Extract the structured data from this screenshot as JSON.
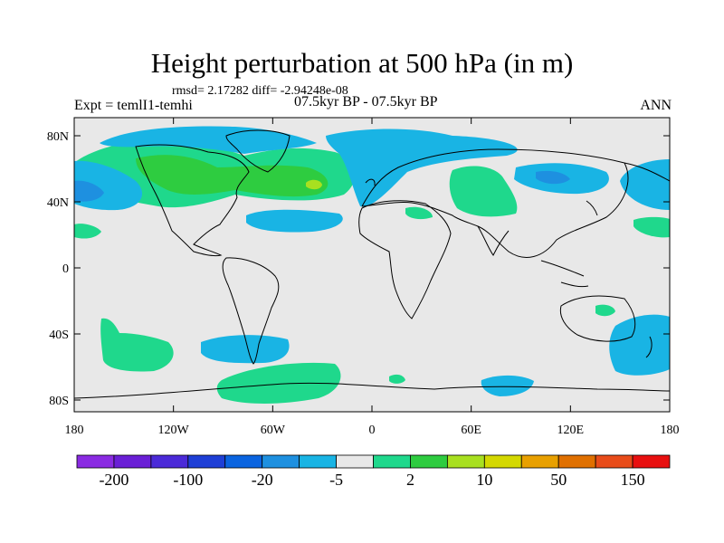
{
  "header": {
    "title": "Height perturbation at 500 hPa (in m)",
    "stats": "rmsd= 2.17282 diff= -2.94248e-08",
    "left_label": "Expt = temlI1-temhi",
    "center_label": "07.5kyr BP - 07.5kyr BP",
    "right_label": "ANN"
  },
  "map": {
    "x_ticks": [
      "180",
      "120W",
      "60W",
      "0",
      "60E",
      "120E",
      "180"
    ],
    "y_ticks": [
      "80N",
      "40N",
      "0",
      "40S",
      "80S"
    ],
    "background_color": "#e8e8e8"
  },
  "colorbar": {
    "colors": [
      "#8a2be2",
      "#6a1fd6",
      "#4b2ad8",
      "#1e3fd6",
      "#0a64e0",
      "#1e90e0",
      "#19b4e4",
      "#e8e8e8",
      "#1fd88c",
      "#2ecc40",
      "#a8e020",
      "#d4d800",
      "#e8a000",
      "#e07000",
      "#e84c1a",
      "#e81010"
    ],
    "labels": [
      "-200",
      "-100",
      "-20",
      "-5",
      "2",
      "10",
      "50",
      "150"
    ]
  },
  "field_colors": {
    "green": "#1fd88c",
    "dark_green": "#2ecc40",
    "yellow_green": "#a8e020",
    "cyan": "#19b4e4",
    "blue": "#1e90e0"
  }
}
